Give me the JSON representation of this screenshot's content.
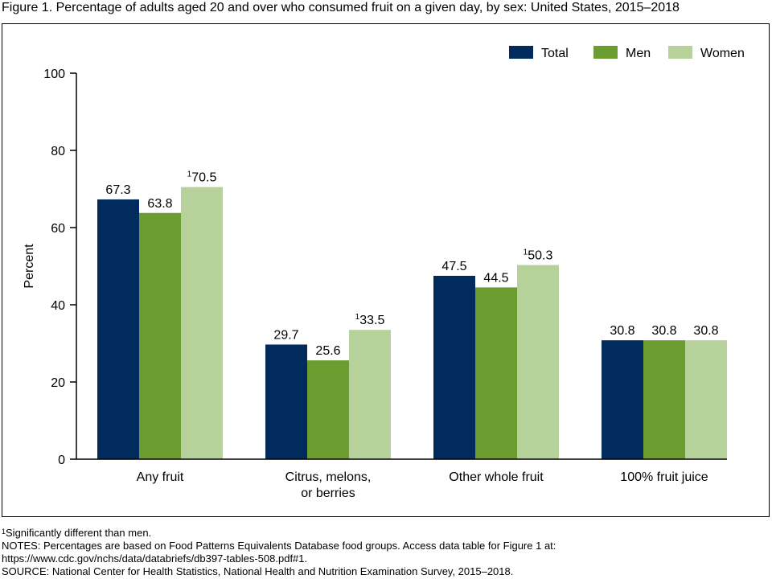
{
  "title": "Figure 1. Percentage of adults aged 20 and over who consumed fruit on a given day, by sex: United States, 2015–2018",
  "footnotes": {
    "superscript": "1",
    "sig_note": "Significantly different than men.",
    "notes_line1": "NOTES: Percentages are based on Food Patterns Equivalents Database food groups. Access data table for Figure 1 at:",
    "notes_line2": "https://www.cdc.gov/nchs/data/databriefs/db397-tables-508.pdf#1.",
    "source": "SOURCE: National Center for Health Statistics, National Health and Nutrition Examination Survey, 2015–2018."
  },
  "chart_data": {
    "type": "bar",
    "ylabel": "Percent",
    "xlabel": "",
    "ylim": [
      0,
      100
    ],
    "yticks": [
      0,
      20,
      40,
      60,
      80,
      100
    ],
    "legend_position": "top-right",
    "categories": [
      [
        "Any fruit"
      ],
      [
        "Citrus, melons,",
        "or berries"
      ],
      [
        "Other whole fruit"
      ],
      [
        "100% fruit juice"
      ]
    ],
    "series": [
      {
        "name": "Total",
        "color": "#002b5c",
        "values": [
          67.3,
          29.7,
          47.5,
          30.8
        ],
        "footnote": [
          false,
          false,
          false,
          false
        ]
      },
      {
        "name": "Men",
        "color": "#6a9c2f",
        "values": [
          63.8,
          25.6,
          44.5,
          30.8
        ],
        "footnote": [
          false,
          false,
          false,
          false
        ]
      },
      {
        "name": "Women",
        "color": "#b6d29a",
        "values": [
          70.5,
          33.5,
          50.3,
          30.8
        ],
        "footnote": [
          true,
          true,
          true,
          false
        ]
      }
    ]
  }
}
